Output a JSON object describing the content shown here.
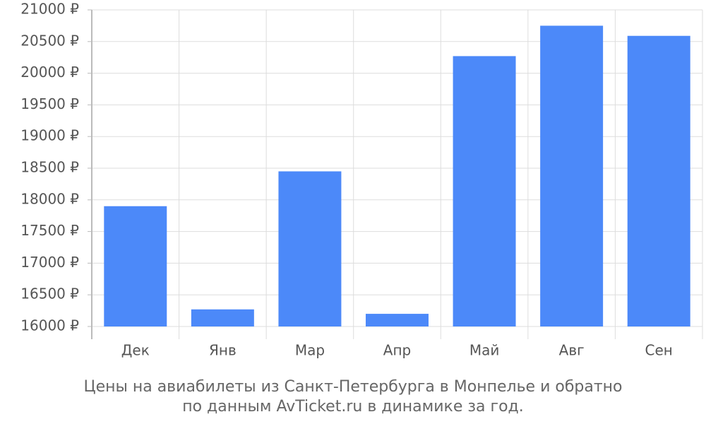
{
  "chart_data": {
    "type": "bar",
    "title": [
      "Цены на авиабилеты из Санкт-Петербурга в Монпелье и обратно",
      "по данным AvTicket.ru в динамике за год."
    ],
    "categories": [
      "Дек",
      "Янв",
      "Мар",
      "Апр",
      "Май",
      "Авг",
      "Сен"
    ],
    "values": [
      17900,
      16270,
      18450,
      16200,
      20270,
      20750,
      20590
    ],
    "color": "#4c89f9",
    "ylim": [
      16000,
      21000
    ],
    "yticks": [
      {
        "value": 16000,
        "label": "16000 ₽"
      },
      {
        "value": 16500,
        "label": "16500 ₽"
      },
      {
        "value": 17000,
        "label": "17000 ₽"
      },
      {
        "value": 17500,
        "label": "17500 ₽"
      },
      {
        "value": 18000,
        "label": "18000 ₽"
      },
      {
        "value": 18500,
        "label": "18500 ₽"
      },
      {
        "value": 19000,
        "label": "19000 ₽"
      },
      {
        "value": 19500,
        "label": "19500 ₽"
      },
      {
        "value": 20000,
        "label": "20000 ₽"
      },
      {
        "value": 20500,
        "label": "20500 ₽"
      },
      {
        "value": 21000,
        "label": "21000 ₽"
      }
    ],
    "grid": true
  }
}
